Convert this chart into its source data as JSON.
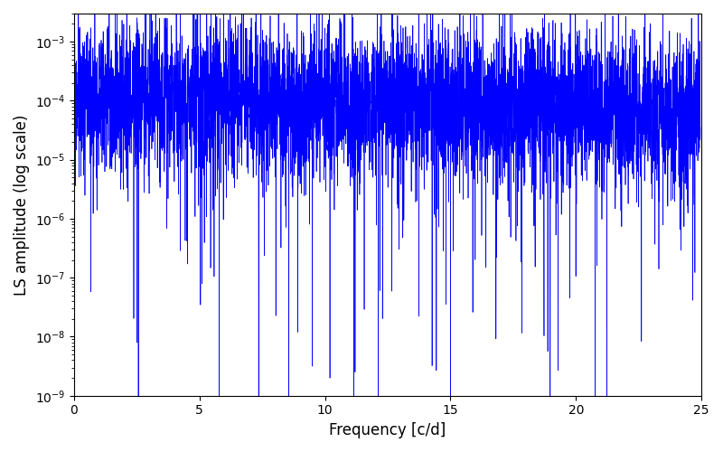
{
  "xlabel": "Frequency [c/d]",
  "ylabel": "LS amplitude (log scale)",
  "line_color": "#0000ff",
  "line_width": 0.5,
  "xlim": [
    0,
    25
  ],
  "ylim": [
    1e-09,
    0.003
  ],
  "n_points": 5000,
  "xfreq_min": 0.02,
  "xfreq_max": 24.95,
  "background_color": "#ffffff",
  "figsize": [
    8.0,
    5.0
  ],
  "dpi": 100
}
